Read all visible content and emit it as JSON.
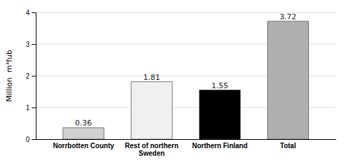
{
  "chart_data": {
    "type": "bar",
    "categories": [
      "Norrbotten County",
      "Rest of northern Sweden",
      "Northern Finland",
      "Total"
    ],
    "values": [
      0.36,
      1.81,
      1.55,
      3.72
    ],
    "colors": [
      "#d0d0d0",
      "#f0f0f0",
      "#000000",
      "#b0b0b0"
    ],
    "ylabel": "Million  m³fub",
    "ylim": [
      0,
      4
    ],
    "yticks": [
      0,
      1,
      2,
      3,
      4
    ],
    "grid": true,
    "data_labels": true
  }
}
